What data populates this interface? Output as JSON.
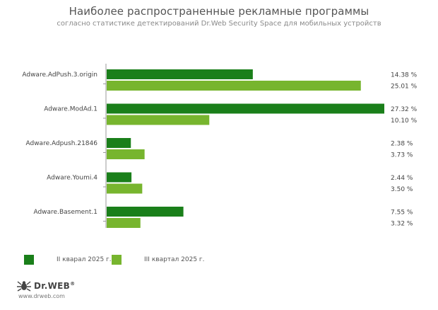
{
  "header": {
    "title": "Наиболее распространенные рекламные программы",
    "subtitle": "согласно статистике детектирований Dr.Web Security Space для мобильных устройств"
  },
  "colors": {
    "series_q2": "#1a7f1a",
    "series_q3": "#77b52e",
    "axis": "#999999"
  },
  "chart_data": {
    "type": "bar",
    "orientation": "horizontal",
    "title": "Наиболее распространенные рекламные программы",
    "subtitle": "согласно статистике детектирований Dr.Web Security Space для мобильных устройств",
    "categories": [
      "Adware.AdPush.3.origin",
      "Adware.ModAd.1",
      "Adware.Adpush.21846",
      "Adware.Youmi.4",
      "Adware.Basement.1"
    ],
    "series": [
      {
        "name": "II кварал 2025 г.",
        "values": [
          14.38,
          27.32,
          2.38,
          2.44,
          7.55
        ],
        "labels": [
          "14.38 %",
          "27.32 %",
          "2.38 %",
          "2.44 %",
          "7.55 %"
        ]
      },
      {
        "name": "III квартал 2025 г.",
        "values": [
          25.01,
          10.1,
          3.73,
          3.5,
          3.32
        ],
        "labels": [
          "25.01 %",
          "10.10 %",
          "3.73 %",
          "3.50 %",
          "3.32 %"
        ]
      }
    ],
    "xlim": [
      0,
      27.32
    ],
    "unit": "%",
    "legend_position": "bottom-left",
    "grid": false
  },
  "logo": {
    "brand": "Dr.WEB",
    "trademark": "®",
    "url": "www.drweb.com",
    "icon": "spider-icon"
  }
}
